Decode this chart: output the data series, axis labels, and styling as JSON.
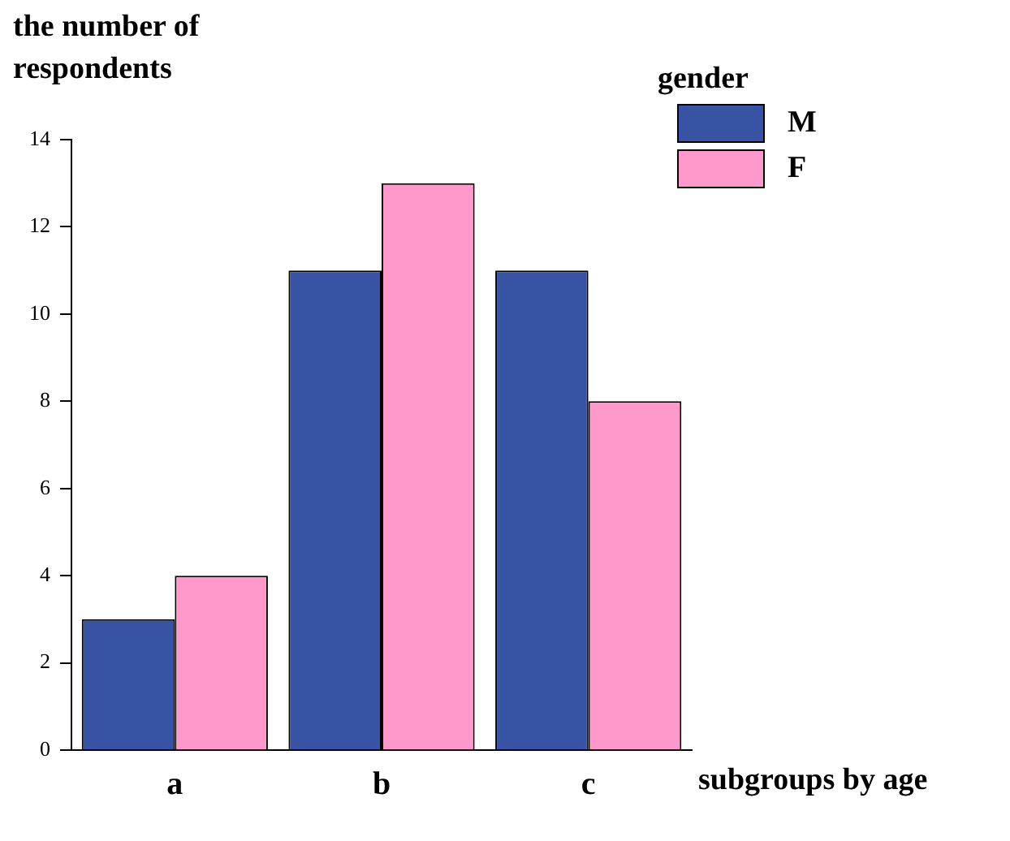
{
  "chart_data": {
    "type": "bar",
    "ylabel": "the number of respondents",
    "xlabel": "subgroups by age",
    "legend_title": "gender",
    "legend": "top right",
    "grid": false,
    "categories": [
      "a",
      "b",
      "c"
    ],
    "series": [
      {
        "name": "M",
        "color": "#3953a4",
        "values": [
          3,
          11,
          11
        ]
      },
      {
        "name": "F",
        "color": "#ff99cc",
        "values": [
          4,
          13,
          8
        ]
      }
    ],
    "ylim": [
      0,
      14
    ],
    "yticks": [
      0,
      2,
      4,
      6,
      8,
      10,
      12,
      14
    ]
  }
}
